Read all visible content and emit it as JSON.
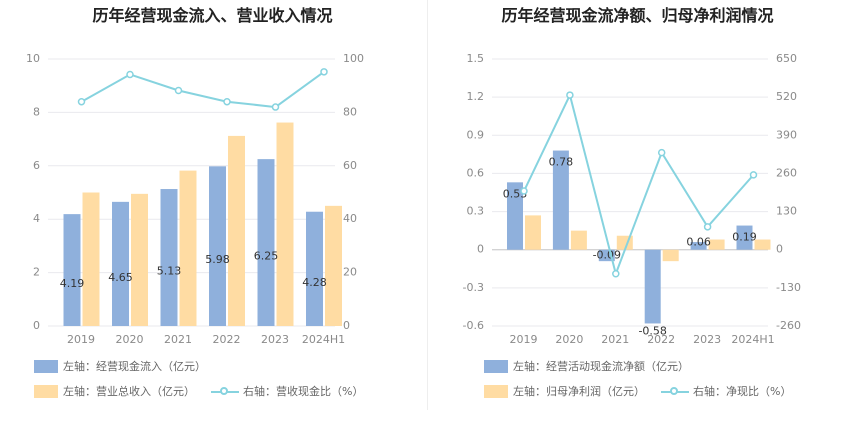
{
  "colors": {
    "bar1": "#8fb0dc",
    "bar2": "#ffdca3",
    "line": "#86d3df",
    "grid": "#e9e9ee",
    "axis_text": "#8a8a8a",
    "label_text": "#333333"
  },
  "chart_data": [
    {
      "type": "bar",
      "title": "历年经营现金流入、营业收入情况",
      "categories": [
        "2019",
        "2020",
        "2021",
        "2022",
        "2023",
        "2024H1"
      ],
      "series": [
        {
          "name": "左轴：经营现金流入（亿元）",
          "axis": "left",
          "kind": "bar",
          "values": [
            4.19,
            4.65,
            5.13,
            5.98,
            6.25,
            4.28
          ],
          "labels": [
            "4.19",
            "4.65",
            "5.13",
            "5.98",
            "6.25",
            "4.28"
          ]
        },
        {
          "name": "左轴：营业总收入（亿元）",
          "axis": "left",
          "kind": "bar",
          "values": [
            5.0,
            4.95,
            5.82,
            7.12,
            7.62,
            4.5
          ]
        },
        {
          "name": "右轴：营收现金比（%）",
          "axis": "right",
          "kind": "line",
          "values": [
            84,
            94.2,
            88.2,
            84,
            82,
            95.2
          ]
        }
      ],
      "left_axis": {
        "min": 0,
        "max": 10,
        "ticks": [
          "0",
          "2",
          "4",
          "6",
          "8",
          "10"
        ]
      },
      "right_axis": {
        "min": 0,
        "max": 100,
        "ticks": [
          "0",
          "20",
          "40",
          "60",
          "80",
          "100"
        ]
      },
      "grid": true,
      "legend_position": "bottom"
    },
    {
      "type": "bar",
      "title": "历年经营现金流净额、归母净利润情况",
      "categories": [
        "2019",
        "2020",
        "2021",
        "2022",
        "2023",
        "2024H1"
      ],
      "series": [
        {
          "name": "左轴：经营活动现金流净额（亿元）",
          "axis": "left",
          "kind": "bar",
          "values": [
            0.53,
            0.78,
            -0.09,
            -0.58,
            0.06,
            0.19
          ],
          "labels": [
            "0.53",
            "0.78",
            "-0.09",
            "-0.58",
            "0.06",
            "0.19"
          ]
        },
        {
          "name": "左轴：归母净利润（亿元）",
          "axis": "left",
          "kind": "bar",
          "values": [
            0.27,
            0.15,
            0.11,
            -0.09,
            0.08,
            0.08
          ]
        },
        {
          "name": "右轴：净现比（%）",
          "axis": "right",
          "kind": "line",
          "values": [
            200,
            527,
            -82,
            331,
            78,
            255
          ]
        }
      ],
      "left_axis": {
        "min": -0.6,
        "max": 1.5,
        "ticks": [
          "-0.6",
          "-0.3",
          "0",
          "0.3",
          "0.6",
          "0.9",
          "1.2",
          "1.5"
        ]
      },
      "right_axis": {
        "min": -260,
        "max": 650,
        "ticks": [
          "-260",
          "-130",
          "0",
          "130",
          "260",
          "390",
          "520",
          "650"
        ]
      },
      "grid": true,
      "legend_position": "bottom"
    }
  ]
}
